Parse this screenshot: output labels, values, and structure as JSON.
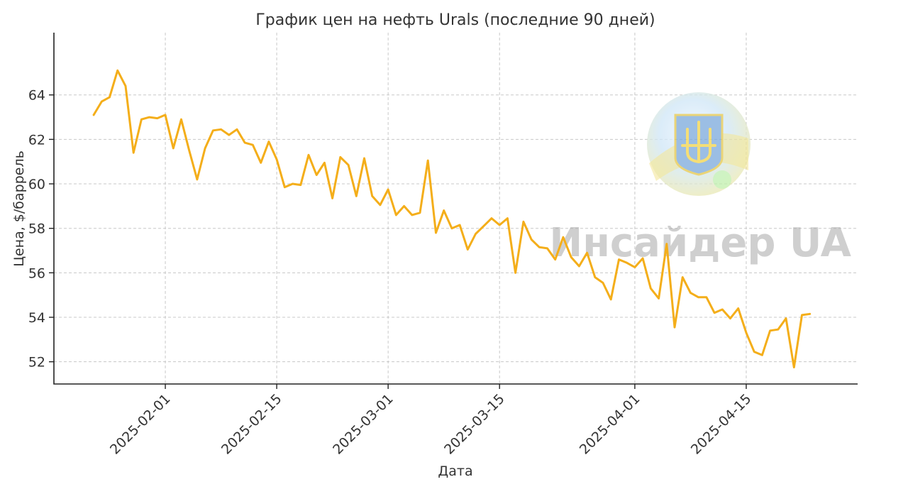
{
  "colors": {
    "series": "#F4AE1A",
    "text": "#333333",
    "grid": "#c8c8c8",
    "watermark": "#a8a8a8"
  },
  "logo": {
    "icon": "ukraine-trident-emblem-icon",
    "text": "Инсайдер UA"
  },
  "chart_data": {
    "type": "line",
    "title": "График цен на нефть Urals (последние 90 дней)",
    "xlabel": "Дата",
    "ylabel": "Цена, $/баррель",
    "grid": true,
    "xlim": [
      "2025-01-18",
      "2025-04-29"
    ],
    "ylim": [
      51.0,
      66.8
    ],
    "x_ticks": [
      "2025-02-01",
      "2025-02-15",
      "2025-03-01",
      "2025-03-15",
      "2025-04-01",
      "2025-04-15"
    ],
    "y_ticks": [
      52,
      54,
      56,
      58,
      60,
      62,
      64
    ],
    "series": [
      {
        "x": [
          "2025-01-23",
          "2025-01-24",
          "2025-01-25",
          "2025-01-26",
          "2025-01-27",
          "2025-01-28",
          "2025-01-29",
          "2025-01-30",
          "2025-01-31",
          "2025-02-01",
          "2025-02-02",
          "2025-02-03",
          "2025-02-04",
          "2025-02-05",
          "2025-02-06",
          "2025-02-07",
          "2025-02-08",
          "2025-02-09",
          "2025-02-10",
          "2025-02-11",
          "2025-02-12",
          "2025-02-13",
          "2025-02-14",
          "2025-02-15",
          "2025-02-16",
          "2025-02-17",
          "2025-02-18",
          "2025-02-19",
          "2025-02-20",
          "2025-02-21",
          "2025-02-22",
          "2025-02-23",
          "2025-02-24",
          "2025-02-25",
          "2025-02-26",
          "2025-02-27",
          "2025-02-28",
          "2025-03-01",
          "2025-03-02",
          "2025-03-03",
          "2025-03-04",
          "2025-03-05",
          "2025-03-06",
          "2025-03-07",
          "2025-03-08",
          "2025-03-09",
          "2025-03-10",
          "2025-03-11",
          "2025-03-12",
          "2025-03-13",
          "2025-03-14",
          "2025-03-15",
          "2025-03-16",
          "2025-03-17",
          "2025-03-18",
          "2025-03-19",
          "2025-03-20",
          "2025-03-21",
          "2025-03-22",
          "2025-03-23",
          "2025-03-24",
          "2025-03-25",
          "2025-03-26",
          "2025-03-27",
          "2025-03-28",
          "2025-03-29",
          "2025-03-30",
          "2025-03-31",
          "2025-04-01",
          "2025-04-02",
          "2025-04-03",
          "2025-04-04",
          "2025-04-05",
          "2025-04-06",
          "2025-04-07",
          "2025-04-08",
          "2025-04-09",
          "2025-04-10",
          "2025-04-11",
          "2025-04-12",
          "2025-04-13",
          "2025-04-14",
          "2025-04-15",
          "2025-04-16",
          "2025-04-17",
          "2025-04-18",
          "2025-04-19",
          "2025-04-20",
          "2025-04-21",
          "2025-04-22",
          "2025-04-23"
        ],
        "values": [
          63.1,
          63.7,
          63.9,
          65.1,
          64.4,
          61.4,
          62.9,
          63.0,
          62.95,
          63.1,
          61.6,
          62.9,
          61.5,
          60.2,
          61.6,
          62.4,
          62.45,
          62.2,
          62.45,
          61.85,
          61.75,
          60.95,
          61.9,
          61.1,
          59.85,
          60.0,
          59.95,
          61.3,
          60.4,
          60.95,
          59.35,
          61.2,
          60.85,
          59.45,
          61.15,
          59.45,
          59.05,
          59.75,
          58.6,
          59.0,
          58.6,
          58.7,
          61.05,
          57.8,
          58.8,
          58.0,
          58.15,
          57.05,
          57.75,
          58.1,
          58.45,
          58.15,
          58.45,
          56.0,
          58.3,
          57.5,
          57.15,
          57.1,
          56.6,
          57.6,
          56.7,
          56.3,
          56.9,
          55.8,
          55.55,
          54.8,
          56.6,
          56.45,
          56.25,
          56.65,
          55.3,
          54.85,
          57.3,
          53.55,
          55.8,
          55.1,
          54.9,
          54.9,
          54.2,
          54.35,
          53.95,
          54.4,
          53.3,
          52.45,
          52.3,
          53.4,
          53.45,
          53.95,
          51.75,
          54.1,
          54.15
        ]
      }
    ]
  }
}
